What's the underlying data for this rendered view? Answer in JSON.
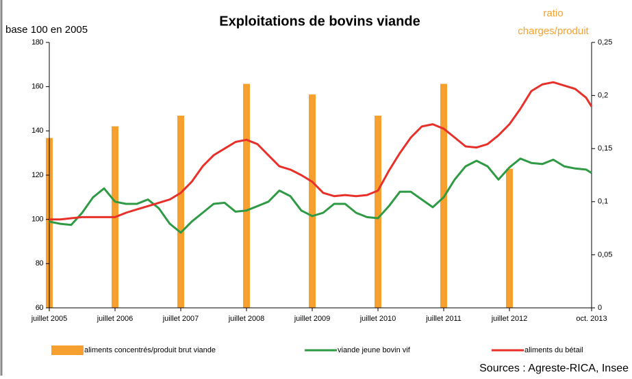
{
  "chart_data": {
    "type": "bar-line",
    "title": "Exploitations de bovins viande",
    "y_label": "base 100 en 2005",
    "y2_label": [
      "ratio",
      "charges/produit"
    ],
    "source": "Sources : Agreste-RICA, Insee",
    "x": [
      "2005-07",
      "2005-09",
      "2005-11",
      "2006-01",
      "2006-03",
      "2006-05",
      "2006-07",
      "2006-09",
      "2006-11",
      "2007-01",
      "2007-03",
      "2007-05",
      "2007-07",
      "2007-09",
      "2007-11",
      "2008-01",
      "2008-03",
      "2008-05",
      "2008-07",
      "2008-09",
      "2008-11",
      "2009-01",
      "2009-03",
      "2009-05",
      "2009-07",
      "2009-09",
      "2009-11",
      "2010-01",
      "2010-03",
      "2010-05",
      "2010-07",
      "2010-09",
      "2010-11",
      "2011-01",
      "2011-03",
      "2011-05",
      "2011-07",
      "2011-09",
      "2011-11",
      "2012-01",
      "2012-03",
      "2012-05",
      "2012-07",
      "2012-09",
      "2012-11",
      "2013-01",
      "2013-03",
      "2013-05",
      "2013-07",
      "2013-09",
      "2013-10"
    ],
    "xticks": [
      {
        "value": "2005-07",
        "label": "juillet 2005"
      },
      {
        "value": "2006-07",
        "label": "juillet 2006"
      },
      {
        "value": "2007-07",
        "label": "juillet 2007"
      },
      {
        "value": "2008-07",
        "label": "juillet 2008"
      },
      {
        "value": "2009-07",
        "label": "juillet 2009"
      },
      {
        "value": "2010-07",
        "label": "juillet 2010"
      },
      {
        "value": "2011-07",
        "label": "juillet 2011"
      },
      {
        "value": "2012-07",
        "label": "juillet 2012"
      },
      {
        "value": "2013-10",
        "label": "oct. 2013"
      }
    ],
    "ylim": [
      60,
      180
    ],
    "yticks": [
      60,
      80,
      100,
      120,
      140,
      160,
      180
    ],
    "y2lim": [
      0,
      0.25
    ],
    "y2ticks": [
      0,
      {
        "value": 0.05,
        "label": "0,05"
      },
      {
        "value": 0.1,
        "label": "0,1"
      },
      {
        "value": 0.15,
        "label": "0,15"
      },
      {
        "value": 0.2,
        "label": "0,2"
      },
      {
        "value": 0.25,
        "label": "0,25"
      }
    ],
    "series": [
      {
        "name": "aliments concentrés/produit brut viande",
        "type": "bar",
        "axis": "y2",
        "color": "#f7a030",
        "x": [
          "2005-07",
          "2006-07",
          "2007-07",
          "2008-07",
          "2009-07",
          "2010-07",
          "2011-07",
          "2012-07"
        ],
        "values": [
          0.16,
          0.171,
          0.181,
          0.211,
          0.201,
          0.181,
          0.211,
          0.131
        ]
      },
      {
        "name": "viande jeune bovin vif",
        "type": "line",
        "color": "#2e9a44",
        "values": [
          99,
          98,
          97.5,
          103,
          110,
          114,
          108,
          107,
          107,
          109,
          105,
          98,
          94,
          99,
          103,
          107,
          107.5,
          103.5,
          104,
          106,
          108,
          113,
          110.5,
          104,
          101.5,
          103,
          107,
          107,
          103,
          101,
          100.5,
          106,
          112.5,
          112.5,
          109,
          105.5,
          110,
          118,
          124,
          126.5,
          124,
          118,
          123.5,
          127.5,
          125.5,
          125,
          127,
          124,
          123,
          122.5,
          121
        ]
      },
      {
        "name": "aliments du bétail",
        "type": "line",
        "color": "#e8302a",
        "values": [
          100,
          100,
          100.5,
          101,
          101,
          101,
          101,
          103,
          104.5,
          106,
          107.5,
          109,
          112,
          117,
          124,
          129,
          132,
          135,
          136,
          134,
          129,
          124,
          122.5,
          120,
          117,
          112,
          110.5,
          111,
          110.5,
          111,
          113,
          122,
          130,
          137,
          142,
          143,
          141,
          137,
          133,
          132.5,
          134,
          138,
          143,
          150,
          158,
          161,
          162,
          160.5,
          159,
          155,
          151
        ]
      }
    ]
  }
}
